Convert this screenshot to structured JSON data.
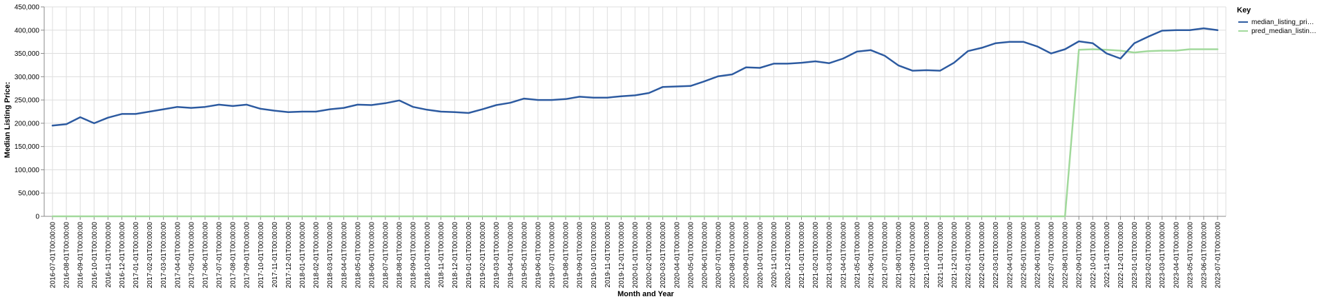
{
  "chart_data": {
    "type": "line",
    "xlabel": "Month and Year",
    "ylabel": "Median Listing Price:",
    "ylim": [
      0,
      450000
    ],
    "yticks": [
      0,
      50000,
      100000,
      150000,
      200000,
      250000,
      300000,
      350000,
      400000,
      450000
    ],
    "ytick_labels": [
      "0",
      "50,000",
      "100,000",
      "150,000",
      "200,000",
      "250,000",
      "300,000",
      "350,000",
      "400,000",
      "450,000"
    ],
    "grid": true,
    "legend": {
      "title": "Key",
      "position": "right",
      "entries": [
        "median_listing_pri…",
        "pred_median_listin…"
      ]
    },
    "x": [
      "2016-07-01T00:00:00",
      "2016-08-01T00:00:00",
      "2016-09-01T00:00:00",
      "2016-10-01T00:00:00",
      "2016-11-01T00:00:00",
      "2016-12-01T00:00:00",
      "2017-01-01T00:00:00",
      "2017-02-01T00:00:00",
      "2017-03-01T00:00:00",
      "2017-04-01T00:00:00",
      "2017-05-01T00:00:00",
      "2017-06-01T00:00:00",
      "2017-07-01T00:00:00",
      "2017-08-01T00:00:00",
      "2017-09-01T00:00:00",
      "2017-10-01T00:00:00",
      "2017-11-01T00:00:00",
      "2017-12-01T00:00:00",
      "2018-01-01T00:00:00",
      "2018-02-01T00:00:00",
      "2018-03-01T00:00:00",
      "2018-04-01T00:00:00",
      "2018-05-01T00:00:00",
      "2018-06-01T00:00:00",
      "2018-07-01T00:00:00",
      "2018-08-01T00:00:00",
      "2018-09-01T00:00:00",
      "2018-10-01T00:00:00",
      "2018-11-01T00:00:00",
      "2018-12-01T00:00:00",
      "2019-01-01T00:00:00",
      "2019-02-01T00:00:00",
      "2019-03-01T00:00:00",
      "2019-04-01T00:00:00",
      "2019-05-01T00:00:00",
      "2019-06-01T00:00:00",
      "2019-07-01T00:00:00",
      "2019-08-01T00:00:00",
      "2019-09-01T00:00:00",
      "2019-10-01T00:00:00",
      "2019-11-01T00:00:00",
      "2019-12-01T00:00:00",
      "2020-01-01T00:00:00",
      "2020-02-01T00:00:00",
      "2020-03-01T00:00:00",
      "2020-04-01T00:00:00",
      "2020-05-01T00:00:00",
      "2020-06-01T00:00:00",
      "2020-07-01T00:00:00",
      "2020-08-01T00:00:00",
      "2020-09-01T00:00:00",
      "2020-10-01T00:00:00",
      "2020-11-01T00:00:00",
      "2020-12-01T00:00:00",
      "2021-01-01T00:00:00",
      "2021-02-01T00:00:00",
      "2021-03-01T00:00:00",
      "2021-04-01T00:00:00",
      "2021-05-01T00:00:00",
      "2021-06-01T00:00:00",
      "2021-07-01T00:00:00",
      "2021-08-01T00:00:00",
      "2021-09-01T00:00:00",
      "2021-10-01T00:00:00",
      "2021-11-01T00:00:00",
      "2021-12-01T00:00:00",
      "2022-01-01T00:00:00",
      "2022-02-01T00:00:00",
      "2022-03-01T00:00:00",
      "2022-04-01T00:00:00",
      "2022-05-01T00:00:00",
      "2022-06-01T00:00:00",
      "2022-07-01T00:00:00",
      "2022-08-01T00:00:00",
      "2022-09-01T00:00:00",
      "2022-10-01T00:00:00",
      "2022-11-01T00:00:00",
      "2022-12-01T00:00:00",
      "2023-01-01T00:00:00",
      "2023-02-01T00:00:00",
      "2023-03-01T00:00:00",
      "2023-04-01T00:00:00",
      "2023-05-01T00:00:00",
      "2023-06-01T00:00:00",
      "2023-07-01T00:00:00"
    ],
    "series": [
      {
        "name": "median_listing_pri…",
        "color": "#2c5aa0",
        "values": [
          195000,
          198000,
          213000,
          200000,
          212000,
          220000,
          220000,
          225000,
          230000,
          235000,
          233000,
          235000,
          240000,
          237000,
          240000,
          231000,
          227000,
          224000,
          225000,
          225000,
          230000,
          233000,
          240000,
          239000,
          243000,
          249000,
          235000,
          229000,
          225000,
          224000,
          222000,
          230000,
          239000,
          244000,
          253000,
          250000,
          250000,
          252000,
          257000,
          255000,
          255000,
          258000,
          260000,
          265000,
          278000,
          279000,
          280000,
          290000,
          301000,
          305000,
          320000,
          319000,
          328000,
          328000,
          330000,
          333000,
          329000,
          339000,
          354000,
          357000,
          345000,
          324000,
          313000,
          314000,
          313000,
          330000,
          355000,
          362000,
          372000,
          375000,
          375000,
          365000,
          350000,
          359000,
          376000,
          372000,
          350000,
          339000,
          372000,
          386000,
          399000,
          400000,
          400000,
          404000,
          400000
        ]
      },
      {
        "name": "pred_median_listin…",
        "color": "#a1d99b",
        "values": [
          0,
          0,
          0,
          0,
          0,
          0,
          0,
          0,
          0,
          0,
          0,
          0,
          0,
          0,
          0,
          0,
          0,
          0,
          0,
          0,
          0,
          0,
          0,
          0,
          0,
          0,
          0,
          0,
          0,
          0,
          0,
          0,
          0,
          0,
          0,
          0,
          0,
          0,
          0,
          0,
          0,
          0,
          0,
          0,
          0,
          0,
          0,
          0,
          0,
          0,
          0,
          0,
          0,
          0,
          0,
          0,
          0,
          0,
          0,
          0,
          0,
          0,
          0,
          0,
          0,
          0,
          0,
          0,
          0,
          0,
          0,
          0,
          0,
          0,
          358000,
          359000,
          358000,
          356000,
          352000,
          355000,
          356000,
          356000,
          359000,
          359000,
          359000
        ]
      }
    ]
  }
}
